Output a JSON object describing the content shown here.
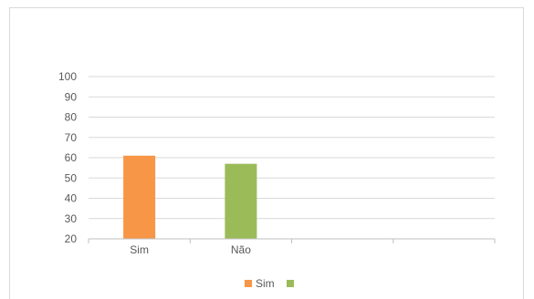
{
  "chart_data": {
    "type": "bar",
    "title": "",
    "xlabel": "",
    "ylabel": "",
    "ylim": [
      20,
      100
    ],
    "yticks": [
      20,
      30,
      40,
      50,
      60,
      70,
      80,
      90,
      100
    ],
    "grid": true,
    "categories": [
      "Sim",
      "Não",
      "",
      ""
    ],
    "values": [
      61,
      57,
      null,
      null
    ],
    "bar_colors": [
      "#f79646",
      "#9bbb59"
    ],
    "legend": {
      "placement": "bottom",
      "entries": [
        {
          "label": "Sim",
          "color": "#f79646"
        },
        {
          "label": "",
          "color": "#9bbb59"
        }
      ]
    }
  }
}
